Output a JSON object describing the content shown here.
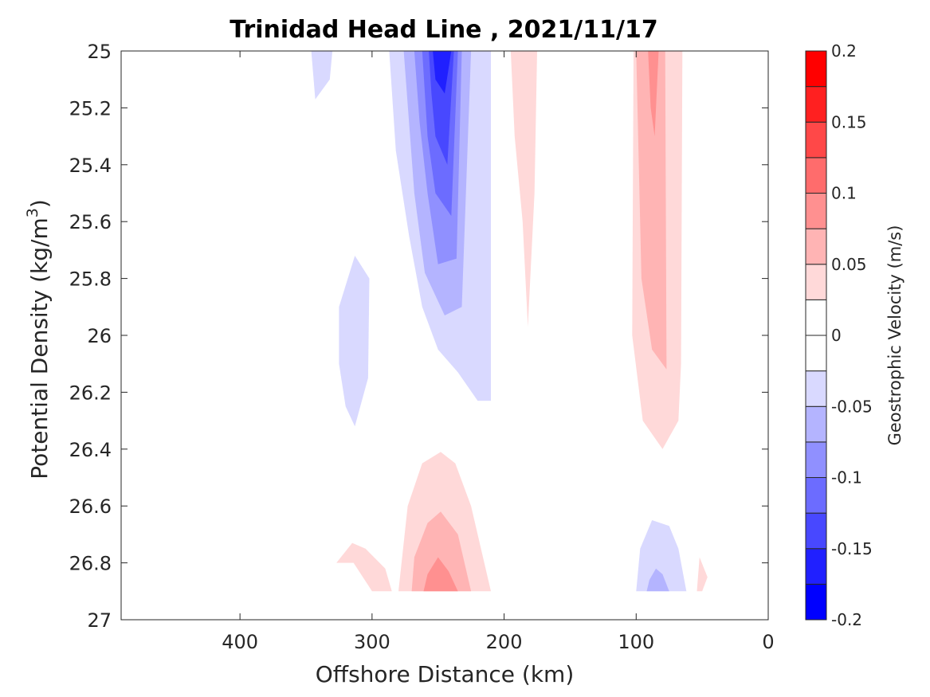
{
  "chart_data": {
    "type": "filled-contour",
    "title": "Trinidad Head Line , 2021/11/17",
    "xlabel": "Offshore Distance (km)",
    "ylabel_main": "Potential Density (kg/m",
    "ylabel_sup": "3",
    "ylabel_close": ")",
    "colorbar_label": "Geostrophic Velocity (m/s)",
    "x_range": [
      490,
      0
    ],
    "y_range": [
      25,
      27
    ],
    "x_ticks": [
      400,
      300,
      200,
      100,
      0
    ],
    "x_tick_labels": [
      "400",
      "300",
      "200",
      "100",
      "0"
    ],
    "y_ticks": [
      25,
      25.2,
      25.4,
      25.6,
      25.8,
      26,
      26.2,
      26.4,
      26.6,
      26.8,
      27
    ],
    "y_tick_labels": [
      "25",
      "25.2",
      "25.4",
      "25.6",
      "25.8",
      "26",
      "26.2",
      "26.4",
      "26.6",
      "26.8",
      "27"
    ],
    "colorbar": {
      "range": [
        -0.2,
        0.2
      ],
      "levels": [
        -0.2,
        -0.175,
        -0.15,
        -0.125,
        -0.1,
        -0.075,
        -0.05,
        -0.025,
        0,
        0.025,
        0.05,
        0.075,
        0.1,
        0.125,
        0.15,
        0.175,
        0.2
      ],
      "colors": [
        "#0000ff",
        "#2020ff",
        "#4848ff",
        "#6c6cff",
        "#9090ff",
        "#b4b4ff",
        "#d9d9ff",
        "#ffffff",
        "#ffffff",
        "#ffd9d9",
        "#ffb4b4",
        "#ff9090",
        "#ff6c6c",
        "#ff4848",
        "#ff2020",
        "#ff0000"
      ],
      "tick_values": [
        0.2,
        0.15,
        0.1,
        0.05,
        0,
        -0.05,
        -0.1,
        -0.15,
        -0.2
      ],
      "tick_labels": [
        "0.2",
        "0.15",
        "0.1",
        "0.05",
        "0",
        "-0.05",
        "-0.1",
        "-0.15",
        "-0.2"
      ]
    },
    "regions": [
      {
        "level": -0.05,
        "points": [
          [
            346,
            25
          ],
          [
            330,
            25
          ],
          [
            332,
            25.1
          ],
          [
            343,
            25.17
          ]
        ]
      },
      {
        "level": -0.05,
        "points": [
          [
            287,
            25
          ],
          [
            210,
            25
          ],
          [
            210,
            26.23
          ],
          [
            220,
            26.23
          ],
          [
            235,
            26.13
          ],
          [
            250,
            26.05
          ],
          [
            262,
            25.9
          ],
          [
            272,
            25.65
          ],
          [
            282,
            25.35
          ]
        ]
      },
      {
        "level": -0.075,
        "points": [
          [
            276,
            25
          ],
          [
            225,
            25
          ],
          [
            232,
            25.9
          ],
          [
            245,
            25.93
          ],
          [
            260,
            25.78
          ],
          [
            268,
            25.5
          ]
        ]
      },
      {
        "level": -0.1,
        "points": [
          [
            268,
            25
          ],
          [
            232,
            25
          ],
          [
            236,
            25.73
          ],
          [
            250,
            25.75
          ],
          [
            258,
            25.5
          ],
          [
            264,
            25.25
          ]
        ]
      },
      {
        "level": -0.125,
        "points": [
          [
            262,
            25
          ],
          [
            235,
            25
          ],
          [
            240,
            25.58
          ],
          [
            252,
            25.5
          ],
          [
            258,
            25.3
          ]
        ]
      },
      {
        "level": -0.15,
        "points": [
          [
            257,
            25
          ],
          [
            238,
            25
          ],
          [
            243,
            25.4
          ],
          [
            252,
            25.3
          ],
          [
            255,
            25.15
          ]
        ]
      },
      {
        "level": -0.175,
        "points": [
          [
            254,
            25
          ],
          [
            240,
            25
          ],
          [
            245,
            25.15
          ],
          [
            252,
            25.1
          ]
        ]
      },
      {
        "level": -0.05,
        "points": [
          [
            313,
            25.72
          ],
          [
            325,
            25.9
          ],
          [
            325,
            26.1
          ],
          [
            320,
            26.25
          ],
          [
            313,
            26.32
          ],
          [
            303,
            26.15
          ],
          [
            302,
            25.8
          ]
        ]
      },
      {
        "level": 0.025,
        "points": [
          [
            195,
            25
          ],
          [
            175,
            25
          ],
          [
            177,
            25.5
          ],
          [
            182,
            25.97
          ],
          [
            186,
            25.6
          ],
          [
            192,
            25.3
          ]
        ]
      },
      {
        "level": 0.025,
        "points": [
          [
            102,
            25
          ],
          [
            65,
            25
          ],
          [
            66,
            26.1
          ],
          [
            68,
            26.3
          ],
          [
            80,
            26.4
          ],
          [
            95,
            26.3
          ],
          [
            103,
            26
          ]
        ]
      },
      {
        "level": 0.05,
        "points": [
          [
            100,
            25
          ],
          [
            78,
            25
          ],
          [
            77,
            26.12
          ],
          [
            88,
            26.05
          ],
          [
            96,
            25.8
          ]
        ]
      },
      {
        "level": 0.075,
        "points": [
          [
            91,
            25
          ],
          [
            83,
            25
          ],
          [
            86,
            25.3
          ],
          [
            89,
            25.2
          ]
        ]
      },
      {
        "level": -0.025,
        "points": [
          [
            49,
            25
          ],
          [
            47,
            25
          ],
          [
            48,
            25.12
          ]
        ]
      },
      {
        "level": 0.025,
        "points": [
          [
            280,
            26.9
          ],
          [
            210,
            26.9
          ],
          [
            225,
            26.6
          ],
          [
            237,
            26.45
          ],
          [
            248,
            26.41
          ],
          [
            262,
            26.45
          ],
          [
            273,
            26.6
          ]
        ]
      },
      {
        "level": 0.05,
        "points": [
          [
            270,
            26.9
          ],
          [
            225,
            26.9
          ],
          [
            235,
            26.7
          ],
          [
            248,
            26.62
          ],
          [
            258,
            26.66
          ],
          [
            268,
            26.78
          ]
        ]
      },
      {
        "level": 0.075,
        "points": [
          [
            261,
            26.9
          ],
          [
            235,
            26.9
          ],
          [
            242,
            26.83
          ],
          [
            250,
            26.78
          ],
          [
            258,
            26.84
          ]
        ]
      },
      {
        "level": 0.025,
        "points": [
          [
            300,
            26.9
          ],
          [
            285,
            26.9
          ],
          [
            290,
            26.82
          ],
          [
            305,
            26.75
          ],
          [
            315,
            26.73
          ],
          [
            327,
            26.8
          ],
          [
            314,
            26.8
          ]
        ]
      },
      {
        "level": 0.025,
        "points": [
          [
            54,
            26.9
          ],
          [
            50,
            26.9
          ],
          [
            46,
            26.85
          ],
          [
            52,
            26.78
          ]
        ]
      },
      {
        "level": -0.05,
        "points": [
          [
            100,
            26.9
          ],
          [
            62,
            26.9
          ],
          [
            68,
            26.75
          ],
          [
            75,
            26.67
          ],
          [
            88,
            26.65
          ],
          [
            97,
            26.75
          ]
        ]
      },
      {
        "level": -0.075,
        "points": [
          [
            92,
            26.9
          ],
          [
            75,
            26.9
          ],
          [
            80,
            26.84
          ],
          [
            85,
            26.82
          ],
          [
            90,
            26.86
          ]
        ]
      },
      {
        "level": -0.025,
        "points": [
          [
            352,
            26.74
          ],
          [
            349,
            26.8
          ],
          [
            352,
            26.8
          ]
        ]
      }
    ]
  }
}
